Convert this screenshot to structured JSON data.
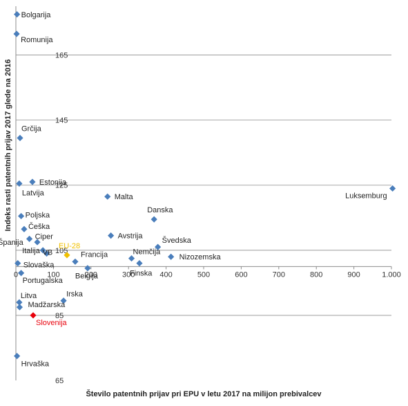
{
  "chart_data": {
    "type": "scatter",
    "xlabel": "Število patentnih prijav pri EPU v letu 2017 na milijon prebivalcev",
    "ylabel": "Indeks rasti patentnih prijav 2017 glede na 2016",
    "xlim": [
      0,
      1000
    ],
    "ylim": [
      65,
      180
    ],
    "x_ticks": [
      0,
      100,
      200,
      300,
      400,
      500,
      600,
      700,
      800,
      900,
      1000
    ],
    "x_tick_labels": [
      "0",
      "100",
      "200",
      "300",
      "400",
      "500",
      "600",
      "700",
      "800",
      "900",
      "1.000"
    ],
    "y_ticks": [
      65,
      85,
      105,
      125,
      145,
      165
    ],
    "grid": "horizontal",
    "series_color": "#4a7ebb",
    "highlight_colors": {
      "EU-28": "#f0c000",
      "Slovenija": "#e8000b"
    },
    "points": [
      {
        "name": "Bolgarija",
        "x": 3,
        "y": 177.5
      },
      {
        "name": "Romunija",
        "x": 2,
        "y": 171.5
      },
      {
        "name": "Grčija",
        "x": 11,
        "y": 139.5
      },
      {
        "name": "Estonija",
        "x": 44,
        "y": 126.0
      },
      {
        "name": "Latvija",
        "x": 9,
        "y": 125.5
      },
      {
        "name": "Malta",
        "x": 244,
        "y": 121.5
      },
      {
        "name": "Luksemburg",
        "x": 1003,
        "y": 124.0
      },
      {
        "name": "Danska",
        "x": 368,
        "y": 114.5
      },
      {
        "name": "Poljska",
        "x": 14,
        "y": 115.5
      },
      {
        "name": "Češka",
        "x": 22,
        "y": 111.5
      },
      {
        "name": "Avstrija",
        "x": 253,
        "y": 109.5
      },
      {
        "name": "Ciper",
        "x": 36,
        "y": 108.5
      },
      {
        "name": "Španija",
        "x": 57,
        "y": 107.5
      },
      {
        "name": "Švedska",
        "x": 378,
        "y": 106.0
      },
      {
        "name": "Italija",
        "x": 72,
        "y": 105.0
      },
      {
        "name": "VB",
        "x": 82,
        "y": 104.0
      },
      {
        "name": "EU-28",
        "x": 136,
        "y": 103.5
      },
      {
        "name": "Francija",
        "x": 158,
        "y": 101.5
      },
      {
        "name": "Nemčija",
        "x": 308,
        "y": 102.5
      },
      {
        "name": "Nizozemska",
        "x": 413,
        "y": 103.0
      },
      {
        "name": "Finska",
        "x": 329,
        "y": 101.0
      },
      {
        "name": "Belgija",
        "x": 191,
        "y": 99.5
      },
      {
        "name": "Slovaška",
        "x": 5,
        "y": 101.0
      },
      {
        "name": "Portugalska",
        "x": 14,
        "y": 98.0
      },
      {
        "name": "Irska",
        "x": 127,
        "y": 89.5
      },
      {
        "name": "Litva",
        "x": 9,
        "y": 89.0
      },
      {
        "name": "Madžarska",
        "x": 10,
        "y": 87.5
      },
      {
        "name": "Slovenija",
        "x": 46,
        "y": 85.0
      },
      {
        "name": "Hrvaška",
        "x": 3,
        "y": 72.5
      }
    ]
  }
}
